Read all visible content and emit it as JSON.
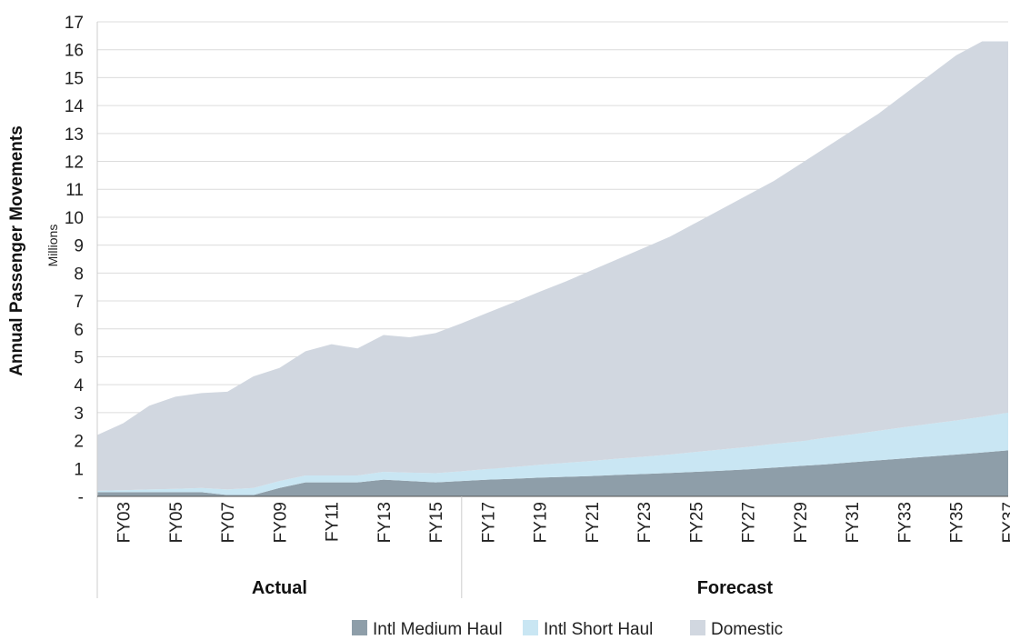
{
  "chart_data": {
    "type": "area",
    "stacked": true,
    "ylabel": "Annual Passenger Movements",
    "yunit": "Millions",
    "ylim": [
      0,
      17
    ],
    "yticks": [
      "-",
      "1",
      "2",
      "3",
      "4",
      "5",
      "6",
      "7",
      "8",
      "9",
      "10",
      "11",
      "12",
      "13",
      "14",
      "15",
      "16",
      "17"
    ],
    "grid": true,
    "legend_position": "bottom",
    "x": [
      "FY02",
      "FY03",
      "FY04",
      "FY05",
      "FY06",
      "FY07",
      "FY08",
      "FY09",
      "FY10",
      "FY11",
      "FY12",
      "FY13",
      "FY14",
      "FY15",
      "FY16",
      "FY17",
      "FY18",
      "FY19",
      "FY20",
      "FY21",
      "FY22",
      "FY23",
      "FY24",
      "FY25",
      "FY26",
      "FY27",
      "FY28",
      "FY29",
      "FY30",
      "FY31",
      "FY32",
      "FY33",
      "FY34",
      "FY35",
      "FY36",
      "FY37"
    ],
    "xticks": [
      "FY03",
      "FY05",
      "FY07",
      "FY09",
      "FY11",
      "FY13",
      "FY15",
      "FY17",
      "FY19",
      "FY21",
      "FY23",
      "FY25",
      "FY27",
      "FY29",
      "FY31",
      "FY33",
      "FY35",
      "FY37"
    ],
    "periods": [
      {
        "label": "Actual",
        "from": "FY02",
        "to": "FY16"
      },
      {
        "label": "Forecast",
        "from": "FY16",
        "to": "FY37"
      }
    ],
    "series": [
      {
        "name": "Intl Medium Haul",
        "color": "#8e9ea9",
        "values": [
          0.15,
          0.15,
          0.15,
          0.15,
          0.15,
          0.05,
          0.05,
          0.3,
          0.5,
          0.5,
          0.5,
          0.6,
          0.55,
          0.5,
          0.55,
          0.6,
          0.63,
          0.67,
          0.7,
          0.73,
          0.77,
          0.8,
          0.84,
          0.88,
          0.92,
          0.97,
          1.03,
          1.09,
          1.15,
          1.22,
          1.29,
          1.36,
          1.43,
          1.5,
          1.57,
          1.65
        ]
      },
      {
        "name": "Intl Short Haul",
        "color": "#c9e6f3",
        "values": [
          0.05,
          0.07,
          0.1,
          0.12,
          0.15,
          0.2,
          0.25,
          0.25,
          0.25,
          0.25,
          0.25,
          0.28,
          0.3,
          0.33,
          0.35,
          0.38,
          0.42,
          0.46,
          0.5,
          0.54,
          0.58,
          0.62,
          0.66,
          0.71,
          0.76,
          0.8,
          0.85,
          0.88,
          0.95,
          1.0,
          1.06,
          1.12,
          1.17,
          1.22,
          1.28,
          1.35
        ]
      },
      {
        "name": "Domestic",
        "color": "#d1d7e0",
        "values": [
          2.0,
          2.4,
          3.0,
          3.3,
          3.4,
          3.5,
          4.0,
          4.05,
          4.45,
          4.7,
          4.55,
          4.9,
          4.85,
          5.02,
          5.3,
          5.6,
          5.9,
          6.2,
          6.5,
          6.83,
          7.15,
          7.48,
          7.8,
          8.21,
          8.62,
          9.03,
          9.42,
          9.93,
          10.4,
          10.88,
          11.35,
          11.92,
          12.5,
          13.08,
          13.45,
          13.3
        ]
      }
    ]
  }
}
